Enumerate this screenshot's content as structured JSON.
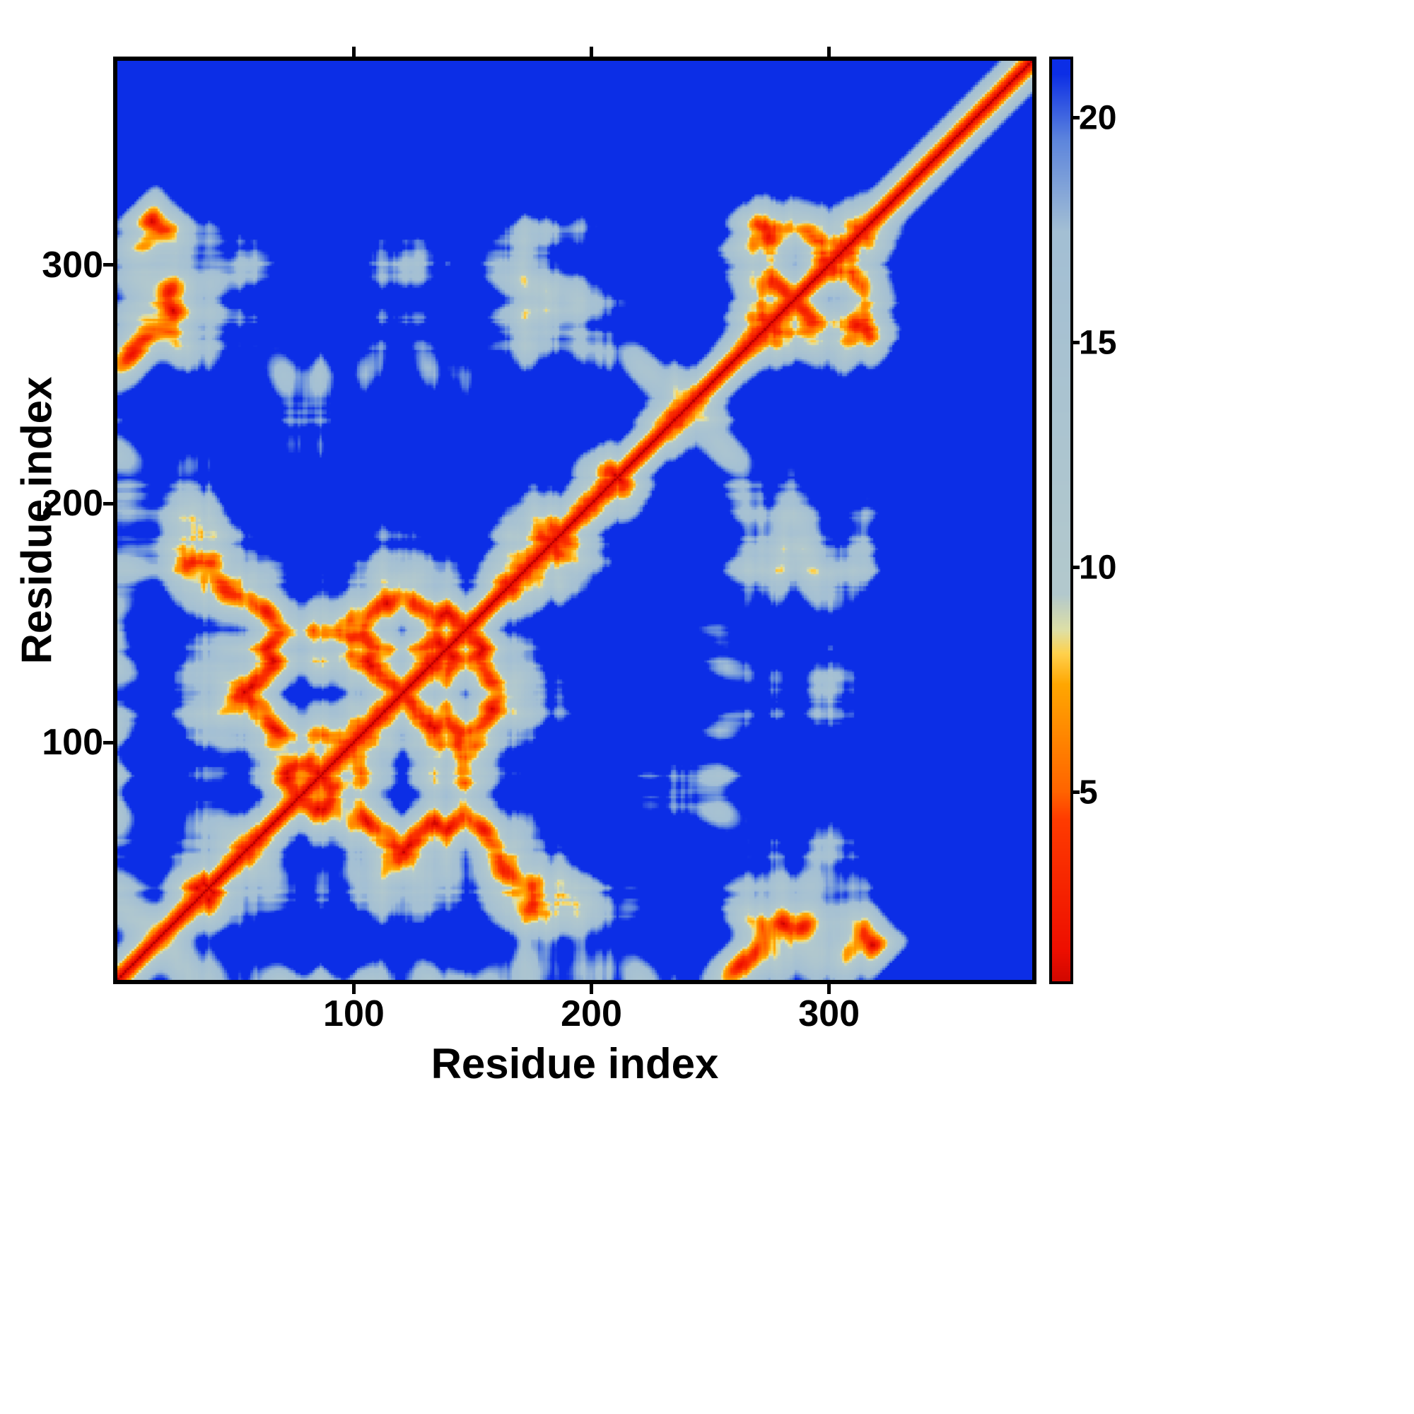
{
  "figure": {
    "background_color": "#ffffff",
    "plot_background_color": "#0c2ee6",
    "frame_color": "#000000"
  },
  "chart_data": {
    "type": "heatmap",
    "title": "",
    "xlabel": "Residue index",
    "ylabel": "Residue index",
    "x_ticks": [
      100,
      200,
      300
    ],
    "y_ticks": [
      100,
      200,
      300
    ],
    "axis_range": [
      1,
      385
    ],
    "grid": false,
    "legend_position": "colorbar-right",
    "colorbar": {
      "ticks": [
        5,
        10,
        15,
        20
      ],
      "vmin": 0.8,
      "vmax": 21.3
    },
    "colormap_stops": [
      [
        0.0,
        "#b30000"
      ],
      [
        1.5,
        "#ee0f00"
      ],
      [
        4.4,
        "#ff3c00"
      ],
      [
        5.0,
        "#ff6400"
      ],
      [
        7.4,
        "#ffa702"
      ],
      [
        8.1,
        "#ffd24f"
      ],
      [
        8.6,
        "#dfe0a6"
      ],
      [
        9.4,
        "#b3c9cd"
      ],
      [
        17.5,
        "#a3bfd4"
      ],
      [
        19.5,
        "#5e86dd"
      ],
      [
        21.0,
        "#0c2ee6"
      ]
    ],
    "out_of_range_color": "#0c2ee6",
    "diagonal_color": "#ee0f00",
    "generation": {
      "note": "synthetic protein-like chain approximating the depicted symmetric inter-residue distance matrix",
      "seed": 13,
      "n_residues": 385,
      "step": 1.45,
      "confine_radius": 17.5,
      "tail_start": 316
    }
  }
}
